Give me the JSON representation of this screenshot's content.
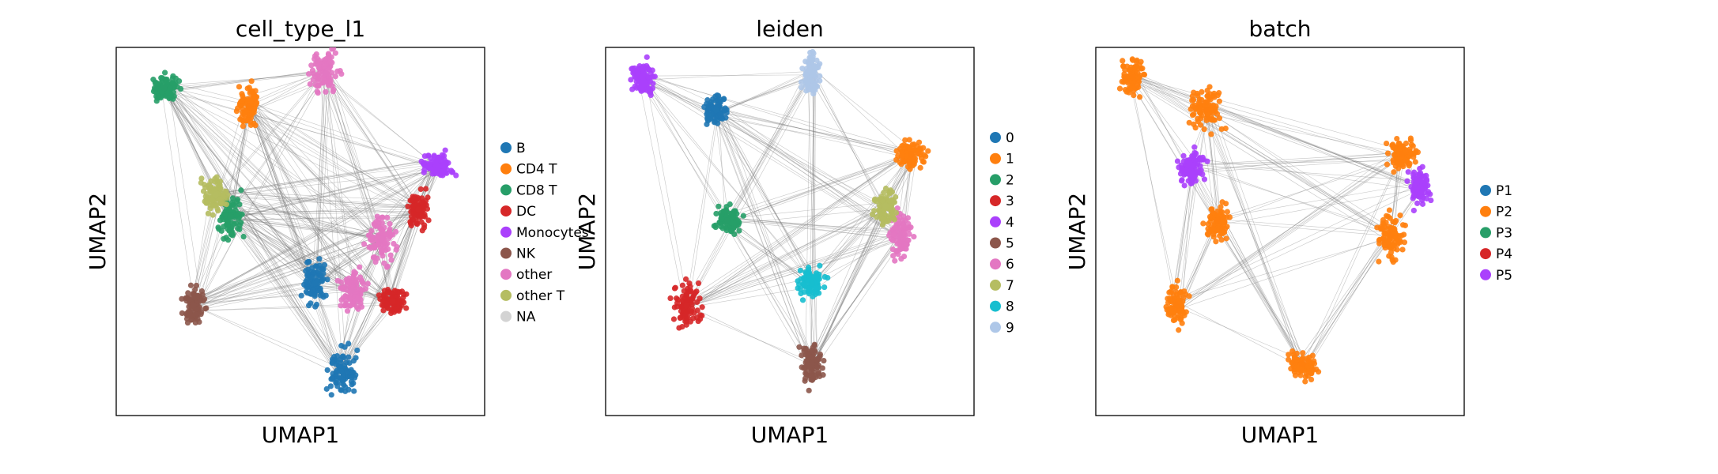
{
  "figure": {
    "background": "#ffffff",
    "edge_color": "#808080",
    "panels": [
      {
        "id": "cell_type_l1",
        "title": "cell_type_l1",
        "xlabel": "UMAP1",
        "ylabel": "UMAP2",
        "legend": [
          {
            "label": "B",
            "color": "#1f77b4"
          },
          {
            "label": "CD4 T",
            "color": "#ff7f0e"
          },
          {
            "label": "CD8 T",
            "color": "#279e68"
          },
          {
            "label": "DC",
            "color": "#d62728"
          },
          {
            "label": "Monocytes",
            "color": "#aa40fc"
          },
          {
            "label": "NK",
            "color": "#8c564b"
          },
          {
            "label": "other",
            "color": "#e377c2"
          },
          {
            "label": "other T",
            "color": "#b5bd61"
          },
          {
            "label": "NA",
            "color": "#d3d3d3"
          }
        ]
      },
      {
        "id": "leiden",
        "title": "leiden",
        "xlabel": "UMAP1",
        "ylabel": "UMAP2",
        "legend": [
          {
            "label": "0",
            "color": "#1f77b4"
          },
          {
            "label": "1",
            "color": "#ff7f0e"
          },
          {
            "label": "2",
            "color": "#279e68"
          },
          {
            "label": "3",
            "color": "#d62728"
          },
          {
            "label": "4",
            "color": "#aa40fc"
          },
          {
            "label": "5",
            "color": "#8c564b"
          },
          {
            "label": "6",
            "color": "#e377c2"
          },
          {
            "label": "7",
            "color": "#b5bd61"
          },
          {
            "label": "8",
            "color": "#17becf"
          },
          {
            "label": "9",
            "color": "#aec7e8"
          }
        ]
      },
      {
        "id": "batch",
        "title": "batch",
        "xlabel": "UMAP1",
        "ylabel": "UMAP2",
        "legend": [
          {
            "label": "P1",
            "color": "#1f77b4"
          },
          {
            "label": "P2",
            "color": "#ff7f0e"
          },
          {
            "label": "P3",
            "color": "#279e68"
          },
          {
            "label": "P4",
            "color": "#d62728"
          },
          {
            "label": "P5",
            "color": "#aa40fc"
          }
        ]
      }
    ]
  },
  "chart_data": [
    {
      "type": "scatter",
      "title": "cell_type_l1",
      "xlabel": "UMAP1",
      "ylabel": "UMAP2",
      "ticks": "none",
      "grid": false,
      "legend_position": "right",
      "overlay": "PAGA connectivity edges (gray)",
      "categories": [
        "B",
        "CD4 T",
        "CD8 T",
        "DC",
        "Monocytes",
        "NK",
        "other",
        "other T",
        "NA"
      ],
      "clusters": [
        {
          "category": "B",
          "x": 6.1,
          "y": 1.2
        },
        {
          "category": "CD4 T",
          "x": 3.6,
          "y": 8.4
        },
        {
          "category": "CD8 T",
          "x": 1.3,
          "y": 8.9
        },
        {
          "category": "CD8 T",
          "x": 3.1,
          "y": 5.4
        },
        {
          "category": "other T",
          "x": 2.7,
          "y": 6.0
        },
        {
          "category": "NK",
          "x": 2.1,
          "y": 3.0
        },
        {
          "category": "Monocytes",
          "x": 8.7,
          "y": 6.8
        },
        {
          "category": "DC",
          "x": 8.2,
          "y": 5.6
        },
        {
          "category": "other",
          "x": 7.2,
          "y": 4.8
        },
        {
          "category": "DC",
          "x": 7.5,
          "y": 3.1
        },
        {
          "category": "other",
          "x": 6.4,
          "y": 3.4
        },
        {
          "category": "B",
          "x": 5.4,
          "y": 3.6
        },
        {
          "category": "other",
          "x": 5.7,
          "y": 9.3
        }
      ]
    },
    {
      "type": "scatter",
      "title": "leiden",
      "xlabel": "UMAP1",
      "ylabel": "UMAP2",
      "ticks": "none",
      "grid": false,
      "legend_position": "right",
      "overlay": "PAGA connectivity edges (gray)",
      "categories": [
        "0",
        "1",
        "2",
        "3",
        "4",
        "5",
        "6",
        "7",
        "8",
        "9"
      ],
      "clusters": [
        {
          "category": "0",
          "x": 3.0,
          "y": 8.3
        },
        {
          "category": "1",
          "x": 8.3,
          "y": 7.1
        },
        {
          "category": "2",
          "x": 3.3,
          "y": 5.3
        },
        {
          "category": "3",
          "x": 2.2,
          "y": 3.0
        },
        {
          "category": "4",
          "x": 1.0,
          "y": 9.2
        },
        {
          "category": "5",
          "x": 5.6,
          "y": 1.4
        },
        {
          "category": "6",
          "x": 8.0,
          "y": 4.9
        },
        {
          "category": "7",
          "x": 7.6,
          "y": 5.7
        },
        {
          "category": "8",
          "x": 5.6,
          "y": 3.6
        },
        {
          "category": "9",
          "x": 5.6,
          "y": 9.3
        }
      ]
    },
    {
      "type": "scatter",
      "title": "batch",
      "xlabel": "UMAP1",
      "ylabel": "UMAP2",
      "ticks": "none",
      "grid": false,
      "legend_position": "right",
      "overlay": "PAGA connectivity edges (gray)",
      "categories": [
        "P1",
        "P2",
        "P3",
        "P4",
        "P5"
      ],
      "clusters": [
        {
          "category": "P2",
          "x": 3.0,
          "y": 8.3
        },
        {
          "category": "P2",
          "x": 8.3,
          "y": 7.1
        },
        {
          "category": "P2",
          "x": 3.3,
          "y": 5.3
        },
        {
          "category": "P2",
          "x": 2.2,
          "y": 3.0
        },
        {
          "category": "P2",
          "x": 1.0,
          "y": 9.2
        },
        {
          "category": "P2",
          "x": 5.6,
          "y": 1.4
        },
        {
          "category": "P2",
          "x": 8.0,
          "y": 4.9
        },
        {
          "category": "P5",
          "x": 2.6,
          "y": 6.8
        },
        {
          "category": "P5",
          "x": 8.8,
          "y": 6.2
        }
      ]
    }
  ]
}
